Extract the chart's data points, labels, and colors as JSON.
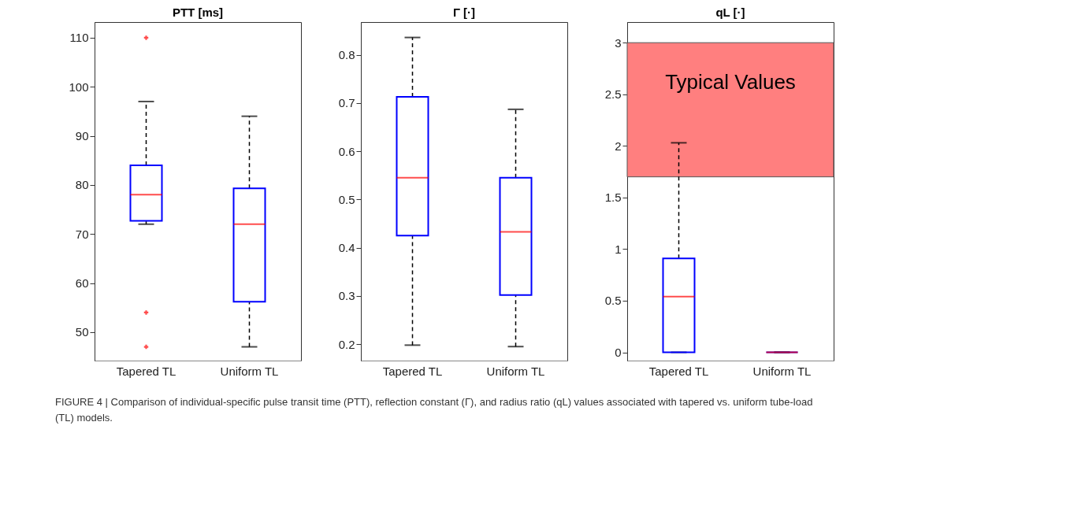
{
  "chart_data": [
    {
      "type": "box",
      "title": "PTT [ms]",
      "categories": [
        "Tapered TL",
        "Uniform TL"
      ],
      "ylim": [
        44.2,
        113.2
      ],
      "yticks": [
        50,
        60,
        70,
        80,
        90,
        100,
        110
      ],
      "series": [
        {
          "boxes": [
            {
              "low": 72.0,
              "q1": 72.7,
              "median": 78.0,
              "q3": 84.0,
              "high": 97.0,
              "outliers": [
                110,
                54,
                47
              ]
            },
            {
              "low": 47.0,
              "q1": 56.2,
              "median": 72.0,
              "q3": 79.3,
              "high": 94.0
            }
          ]
        }
      ],
      "annotations": [
        "FIGURE 4 | Comparison of individual-specific pulse transit time (PTT), reflection constant (Γ), and radius ratio (qL) values associated with tapered vs. uniform tube-load (TL) models."
      ]
    },
    {
      "type": "box",
      "title": "Γ [·]",
      "categories": [
        "Tapered TL",
        "Uniform TL"
      ],
      "ylim": [
        0.166,
        0.868
      ],
      "yticks": [
        0.2,
        0.3,
        0.4,
        0.5,
        0.6,
        0.7,
        0.8
      ],
      "series": [
        {
          "boxes": [
            {
              "low": 0.198,
              "q1": 0.425,
              "median": 0.545,
              "q3": 0.713,
              "high": 0.836
            },
            {
              "low": 0.195,
              "q1": 0.302,
              "median": 0.433,
              "q3": 0.545,
              "high": 0.687
            }
          ]
        }
      ]
    },
    {
      "type": "box",
      "title": "qL [·]",
      "categories": [
        "Tapered TL",
        "Uniform TL"
      ],
      "ylim": [
        -0.08,
        3.2
      ],
      "yticks": [
        0,
        0.5,
        1,
        1.5,
        2,
        2.5,
        3
      ],
      "bands": [
        {
          "axis": "y",
          "from": 1.7,
          "to": 3,
          "label": "Typical Values",
          "color": "#ff7f7f"
        }
      ],
      "series": [
        {
          "boxes": [
            {
              "low": 0,
              "q1": 0,
              "median": 0.54,
              "q3": 0.91,
              "high": 2.03
            },
            {
              "low": 0,
              "q1": 0,
              "median": 0,
              "q3": 0,
              "high": 0
            }
          ]
        }
      ]
    }
  ]
}
